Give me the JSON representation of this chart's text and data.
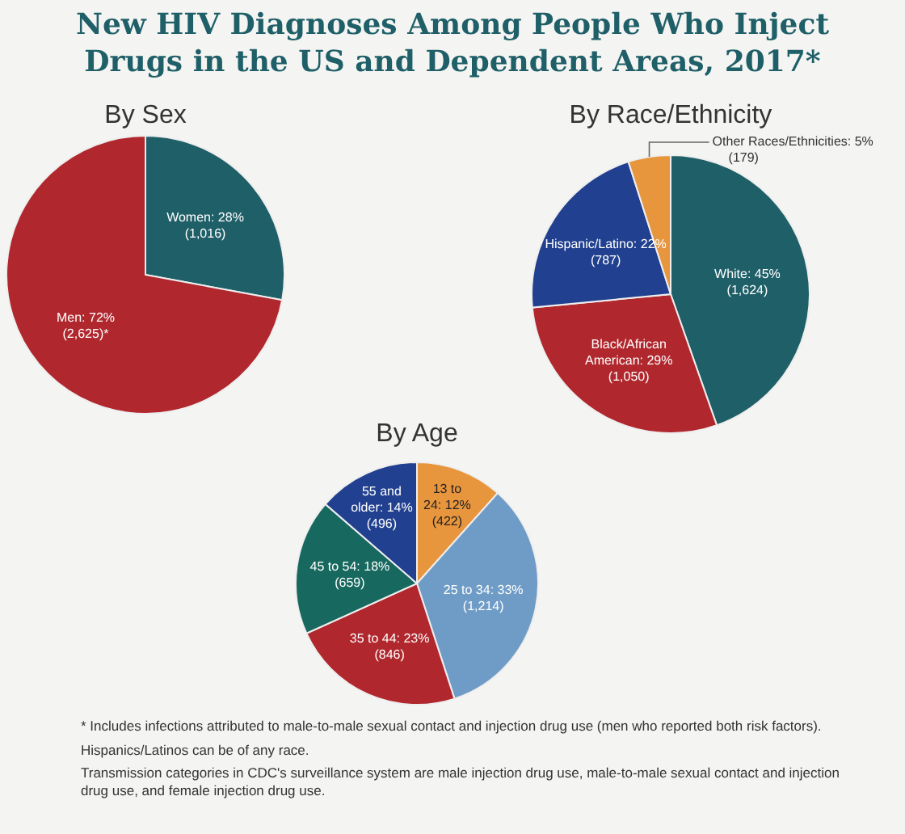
{
  "chart_data": [
    {
      "type": "other",
      "title": "New HIV Diagnoses Among People Who Inject Drugs in the US and Dependent Areas, 2017*"
    },
    {
      "type": "pie",
      "title": "By Sex",
      "categories": [
        "Women",
        "Men"
      ],
      "values": [
        1016,
        2625
      ],
      "colors": [
        "#1f5f68",
        "#b0272d"
      ],
      "value_labels": [
        "28% (1,016)",
        "72% (2,625)*"
      ]
    },
    {
      "type": "pie",
      "title": "By Race/Ethnicity",
      "categories": [
        "White",
        "Black/African American",
        "Hispanic/Latino",
        "Other Races/Ethnicities"
      ],
      "values": [
        1624,
        1050,
        787,
        179
      ],
      "colors": [
        "#1f5f68",
        "#b0272d",
        "#21408f",
        "#e8963e"
      ],
      "value_labels": [
        "45% (1,624)",
        "29% (1,050)",
        "22% (787)",
        "5% (179)"
      ]
    },
    {
      "type": "pie",
      "title": "By Age",
      "categories": [
        "13 to 24",
        "25 to 34",
        "35 to 44",
        "45 to 54",
        "55 and older"
      ],
      "values": [
        422,
        1214,
        846,
        659,
        496
      ],
      "colors": [
        "#e8963e",
        "#6f9cc6",
        "#b0272d",
        "#17695f",
        "#21408f"
      ],
      "value_labels": [
        "12% (422)",
        "33% (1,214)",
        "23% (846)",
        "18% (659)",
        "14% (496)"
      ]
    },
    {
      "type": "other",
      "annotations": [
        "* Includes infections attributed to male-to-male sexual contact and injection drug use (men who reported both risk factors).",
        "Hispanics/Latinos can be of any race.",
        "Transmission categories in CDC's surveillance system are male injection drug use, male-to-male sexual contact and injection drug use, and female injection drug use."
      ]
    }
  ]
}
